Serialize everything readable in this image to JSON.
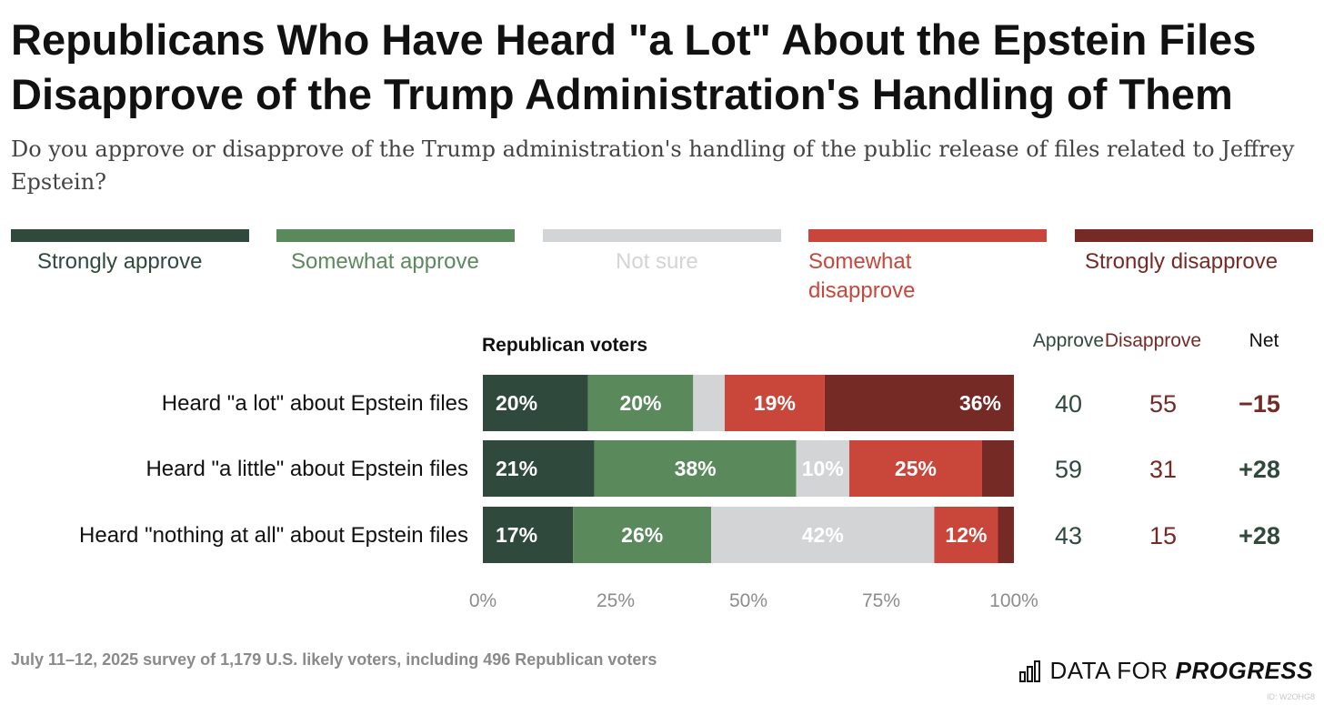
{
  "title": "Republicans Who Have Heard \"a Lot\" About the Epstein Files Disapprove of the Trump Administration's Handling of Them",
  "subtitle": "Do you approve or disapprove of the Trump administration's handling of the public release of files related to Jeffrey Epstein?",
  "colors": {
    "strongly_approve": "#2f4a3c",
    "somewhat_approve": "#5a8a5c",
    "not_sure": "#d3d4d6",
    "somewhat_disapprove": "#c9463b",
    "strongly_disapprove": "#762a25"
  },
  "legend": {
    "strongly_approve": "Strongly approve",
    "somewhat_approve": "Somewhat approve",
    "not_sure": "Not sure",
    "somewhat_disapprove": "Somewhat disapprove",
    "strongly_disapprove": "Strongly disapprove"
  },
  "group_label": "Republican voters",
  "columns": {
    "approve": "Approve",
    "disapprove": "Disapprove",
    "net": "Net"
  },
  "chart_data": {
    "type": "bar",
    "orientation": "horizontal",
    "stacked": true,
    "categories": [
      "Heard \"a lot\" about Epstein files",
      "Heard \"a little\" about Epstein files",
      "Heard \"nothing at all\" about Epstein files"
    ],
    "series": [
      {
        "name": "Strongly approve",
        "values": [
          20,
          21,
          17
        ],
        "labels": [
          "20%",
          "21%",
          "17%"
        ]
      },
      {
        "name": "Somewhat approve",
        "values": [
          20,
          38,
          26
        ],
        "labels": [
          "20%",
          "38%",
          "26%"
        ]
      },
      {
        "name": "Not sure",
        "values": [
          6,
          10,
          42
        ],
        "labels": [
          "",
          "10%",
          "42%"
        ]
      },
      {
        "name": "Somewhat disapprove",
        "values": [
          19,
          25,
          12
        ],
        "labels": [
          "19%",
          "25%",
          "12%"
        ]
      },
      {
        "name": "Strongly disapprove",
        "values": [
          36,
          6,
          3
        ],
        "labels": [
          "36%",
          "",
          ""
        ]
      }
    ],
    "approve": [
      "40",
      "59",
      "43"
    ],
    "disapprove": [
      "55",
      "31",
      "15"
    ],
    "net": [
      "−15",
      "+28",
      "+28"
    ],
    "net_sign": [
      "negative",
      "positive",
      "positive"
    ],
    "xlim": [
      0,
      100
    ],
    "xticks": [
      "0%",
      "25%",
      "50%",
      "75%",
      "100%"
    ],
    "legend_position": "top"
  },
  "source": "July 11–12, 2025 survey of 1,179 U.S. likely voters, including 496 Republican voters",
  "brand": {
    "plain": "DATA FOR",
    "strong": "PROGRESS",
    "icon": "bar-chart-icon"
  },
  "stamp": "ID: W2OHG8"
}
